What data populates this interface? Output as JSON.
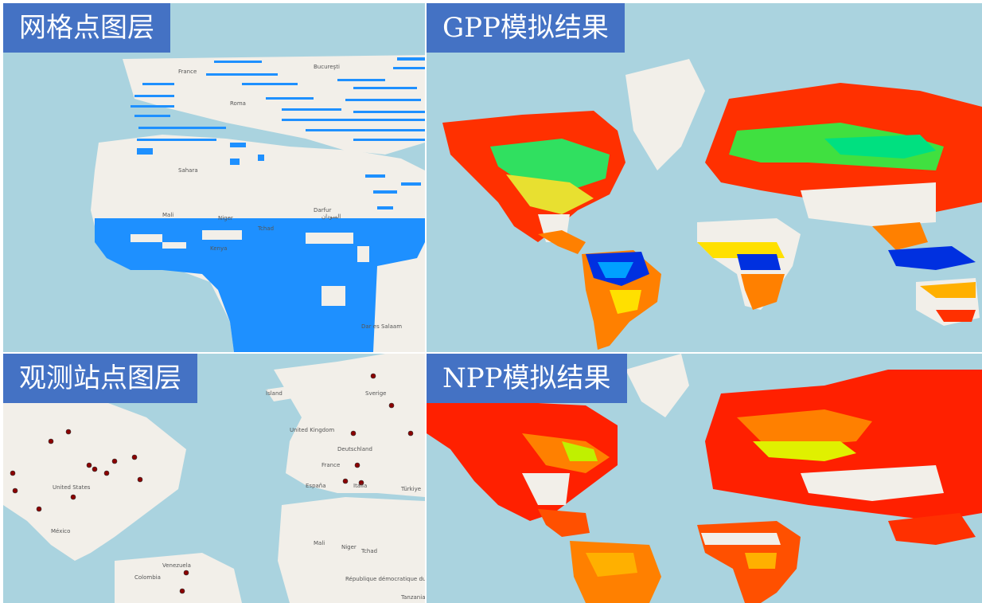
{
  "panels": {
    "grid_layer": {
      "title": "网格点图层"
    },
    "gpp_result": {
      "title": "GPP模拟结果"
    },
    "stations_layer": {
      "title": "观测站点图层"
    },
    "npp_result": {
      "title": "NPP模拟结果"
    }
  },
  "grid_map_labels": [
    "France",
    "Bucureşti",
    "Roma",
    "Mali",
    "Niger",
    "Tchad",
    "Darfur",
    "Kenya",
    "Sahara",
    "السودان",
    "Dar es Salaam"
  ],
  "station_map_labels": [
    "Ísland",
    "Sverige",
    "United Kingdom",
    "Deutschland",
    "France",
    "España",
    "Italia",
    "Türkiye",
    "United States",
    "México",
    "Venezuela",
    "Colombia",
    "Mali",
    "Niger",
    "Tchad",
    "République démocratique du Congo",
    "Tanzania"
  ],
  "colors": {
    "ocean": "#aad3df",
    "land": "#f2efe9",
    "grid_points": "#1e90ff",
    "title_badge": "#4472c4",
    "gpp_scale": [
      "#ff2000",
      "#ff8000",
      "#ffe000",
      "#80ff00",
      "#00e080",
      "#00a0ff",
      "#0030e0"
    ],
    "station_marker": "#8b0000"
  }
}
